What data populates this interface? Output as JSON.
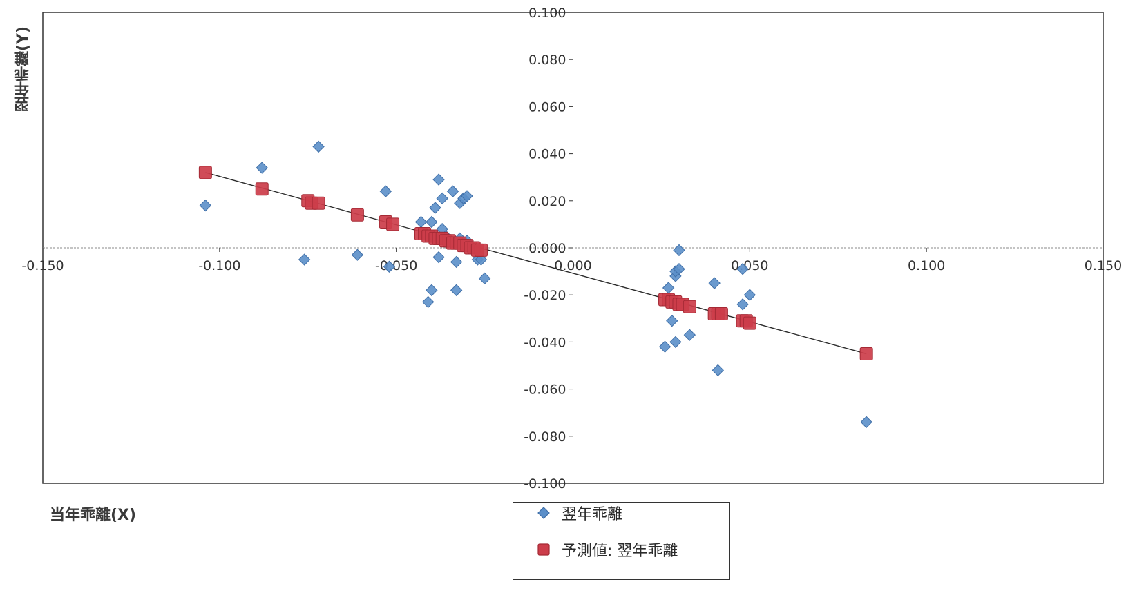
{
  "colors": {
    "observed": "#5b8fc9",
    "observed_edge": "#3f6fa8",
    "predicted": "#cc3d4a",
    "predicted_edge": "#a52a35",
    "trendline": "#2b2b2b",
    "axis": "#333333"
  },
  "chart_data": {
    "type": "scatter",
    "title": "",
    "xlabel": "当年乖離(X)",
    "ylabel": "翌年乖離(Y)",
    "xlim": [
      -0.15,
      0.15
    ],
    "ylim": [
      -0.1,
      0.1
    ],
    "x_ticks": [
      -0.15,
      -0.1,
      -0.05,
      0.0,
      0.05,
      0.1,
      0.15
    ],
    "x_tick_labels": [
      "-0.150",
      "-0.100",
      "-0.050",
      "0.000",
      "0.050",
      "0.100",
      "0.150"
    ],
    "y_ticks": [
      0.1,
      0.08,
      0.06,
      0.04,
      0.02,
      0.0,
      -0.02,
      -0.04,
      -0.06,
      -0.08,
      -0.1
    ],
    "y_tick_labels": [
      "0.100",
      "0.080",
      "0.060",
      "0.040",
      "0.020",
      "0.000",
      "-0.020",
      "-0.040",
      "-0.060",
      "-0.080",
      "-0.100"
    ],
    "grid": false,
    "legend_position": "bottom-center",
    "trendline": {
      "x": [
        -0.104,
        0.083
      ],
      "y": [
        0.032,
        -0.045
      ]
    },
    "series": [
      {
        "name": "翌年乖離",
        "marker": "diamond",
        "x": [
          -0.104,
          -0.088,
          -0.076,
          -0.072,
          -0.061,
          -0.053,
          -0.052,
          -0.043,
          -0.041,
          -0.04,
          -0.04,
          -0.039,
          -0.038,
          -0.038,
          -0.037,
          -0.037,
          -0.036,
          -0.034,
          -0.033,
          -0.033,
          -0.032,
          -0.032,
          -0.031,
          -0.03,
          -0.03,
          -0.029,
          -0.027,
          -0.026,
          -0.025,
          0.026,
          0.027,
          0.028,
          0.029,
          0.029,
          0.029,
          0.03,
          0.03,
          0.033,
          0.04,
          0.041,
          0.048,
          0.048,
          0.05,
          0.083
        ],
        "y": [
          0.018,
          0.034,
          -0.005,
          0.043,
          -0.003,
          0.024,
          -0.008,
          0.011,
          -0.023,
          -0.018,
          0.011,
          0.017,
          0.029,
          -0.004,
          0.021,
          0.008,
          0.005,
          0.024,
          -0.006,
          -0.018,
          0.019,
          0.004,
          0.021,
          0.022,
          0.003,
          0.001,
          -0.005,
          -0.005,
          -0.013,
          -0.042,
          -0.017,
          -0.031,
          -0.04,
          -0.012,
          -0.01,
          -0.001,
          -0.009,
          -0.037,
          -0.015,
          -0.052,
          -0.024,
          -0.009,
          -0.02,
          -0.074
        ]
      },
      {
        "name": "予測値: 翌年乖離",
        "marker": "square",
        "x": [
          -0.104,
          -0.088,
          -0.075,
          -0.074,
          -0.072,
          -0.061,
          -0.053,
          -0.051,
          -0.043,
          -0.042,
          -0.041,
          -0.04,
          -0.039,
          -0.038,
          -0.037,
          -0.036,
          -0.035,
          -0.034,
          -0.033,
          -0.032,
          -0.031,
          -0.03,
          -0.029,
          -0.028,
          -0.027,
          -0.026,
          0.026,
          0.027,
          0.028,
          0.029,
          0.03,
          0.031,
          0.033,
          0.04,
          0.041,
          0.042,
          0.048,
          0.049,
          0.05,
          0.083
        ],
        "y": [
          0.032,
          0.025,
          0.02,
          0.019,
          0.019,
          0.014,
          0.011,
          0.01,
          0.006,
          0.006,
          0.005,
          0.005,
          0.004,
          0.004,
          0.004,
          0.003,
          0.003,
          0.002,
          0.002,
          0.002,
          0.001,
          0.001,
          0.0,
          0.0,
          -0.001,
          -0.001,
          -0.022,
          -0.022,
          -0.023,
          -0.023,
          -0.024,
          -0.024,
          -0.025,
          -0.028,
          -0.028,
          -0.028,
          -0.031,
          -0.031,
          -0.032,
          -0.045
        ]
      }
    ]
  }
}
